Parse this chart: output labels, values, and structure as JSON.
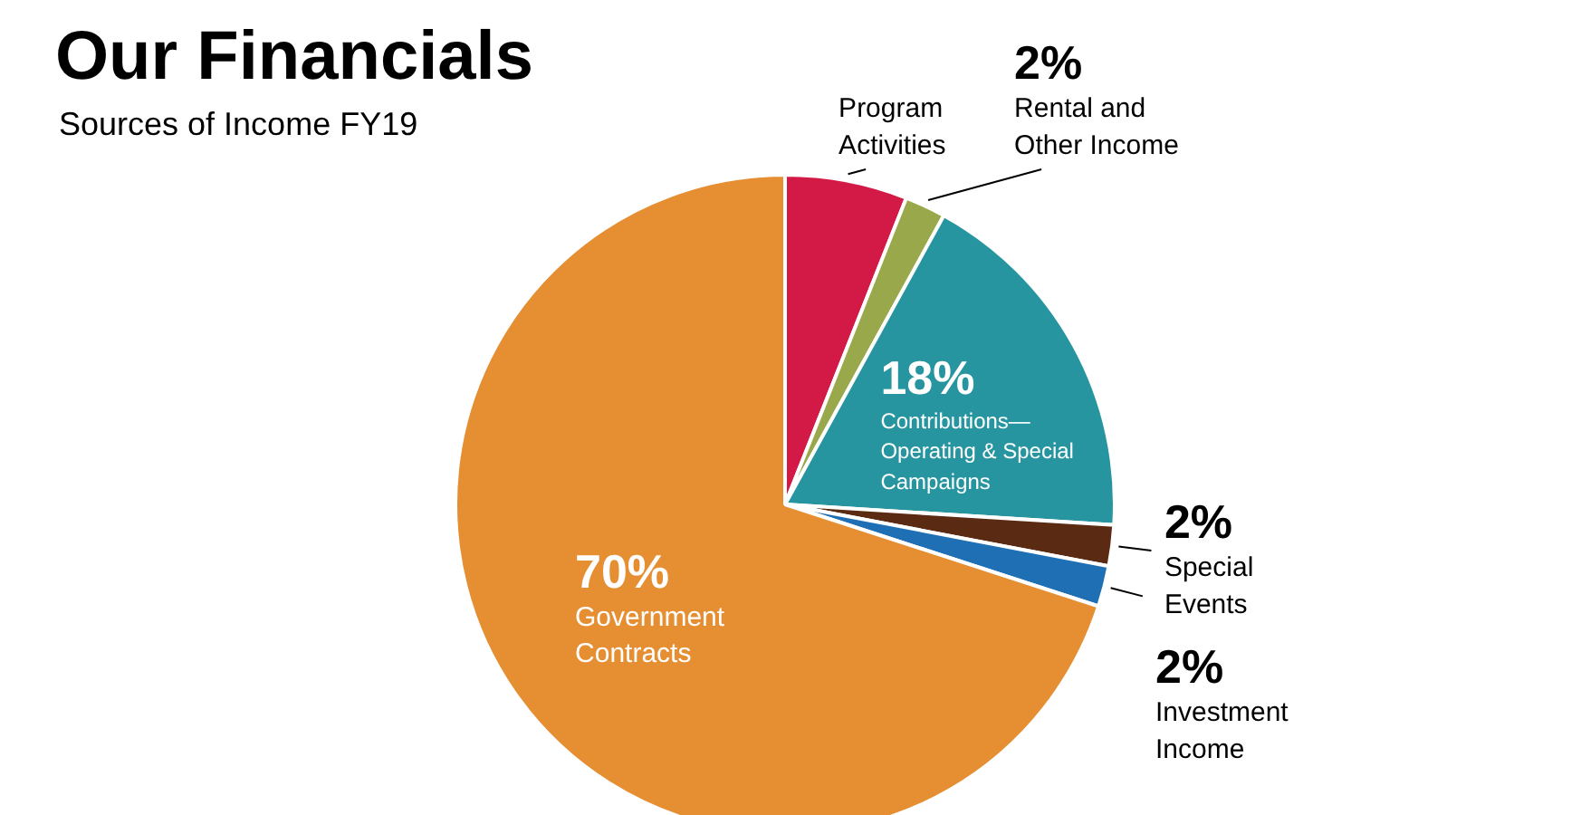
{
  "chart_data": {
    "type": "pie",
    "title": "Our Financials",
    "subtitle": "Sources of Income FY19",
    "categories": [
      "Program Activities",
      "Rental and Other Income",
      "Contributions— Operating & Special Campaigns",
      "Special Events",
      "Investment Income",
      "Government Contracts"
    ],
    "values": [
      6,
      2,
      18,
      2,
      2,
      70
    ],
    "value_labels": [
      null,
      "2%",
      "18%",
      "2%",
      "2%",
      "70%"
    ],
    "colors": [
      "#d31a47",
      "#98a84a",
      "#2695a0",
      "#5a2a12",
      "#1f6fb5",
      "#e58e32"
    ]
  }
}
